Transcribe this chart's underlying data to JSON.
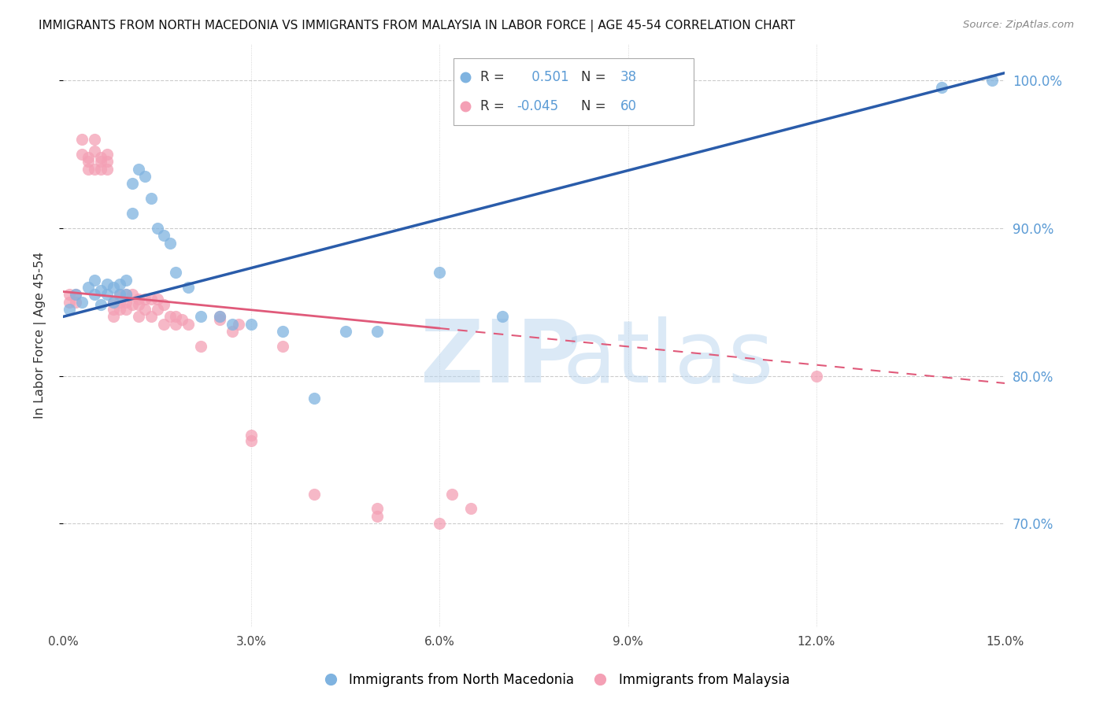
{
  "title": "IMMIGRANTS FROM NORTH MACEDONIA VS IMMIGRANTS FROM MALAYSIA IN LABOR FORCE | AGE 45-54 CORRELATION CHART",
  "source": "Source: ZipAtlas.com",
  "ylabel": "In Labor Force | Age 45-54",
  "legend_label_blue": "Immigrants from North Macedonia",
  "legend_label_pink": "Immigrants from Malaysia",
  "R_blue": 0.501,
  "N_blue": 38,
  "R_pink": -0.045,
  "N_pink": 60,
  "xlim": [
    0.0,
    0.15
  ],
  "ylim": [
    0.63,
    1.025
  ],
  "yticks": [
    0.7,
    0.8,
    0.9,
    1.0
  ],
  "ytick_labels": [
    "70.0%",
    "80.0%",
    "90.0%",
    "100.0%"
  ],
  "xticks": [
    0.0,
    0.03,
    0.06,
    0.09,
    0.12,
    0.15
  ],
  "xtick_labels": [
    "0.0%",
    "3.0%",
    "6.0%",
    "9.0%",
    "12.0%",
    "15.0%"
  ],
  "blue_color": "#7fb3e0",
  "pink_color": "#f4a0b5",
  "blue_line_color": "#2a5caa",
  "pink_line_color": "#e05a7a",
  "grid_color": "#cccccc",
  "right_axis_color": "#5b9bd5",
  "watermark_zip": "ZIP",
  "watermark_atlas": "atlas",
  "blue_scatter_x": [
    0.001,
    0.002,
    0.003,
    0.004,
    0.005,
    0.005,
    0.006,
    0.006,
    0.007,
    0.007,
    0.008,
    0.008,
    0.009,
    0.009,
    0.01,
    0.01,
    0.011,
    0.011,
    0.012,
    0.013,
    0.014,
    0.015,
    0.016,
    0.017,
    0.018,
    0.02,
    0.022,
    0.025,
    0.027,
    0.03,
    0.035,
    0.04,
    0.045,
    0.05,
    0.06,
    0.07,
    0.14,
    0.148
  ],
  "blue_scatter_y": [
    0.845,
    0.855,
    0.85,
    0.86,
    0.855,
    0.865,
    0.858,
    0.848,
    0.862,
    0.855,
    0.86,
    0.85,
    0.862,
    0.855,
    0.865,
    0.855,
    0.93,
    0.91,
    0.94,
    0.935,
    0.92,
    0.9,
    0.895,
    0.89,
    0.87,
    0.86,
    0.84,
    0.84,
    0.835,
    0.835,
    0.83,
    0.785,
    0.83,
    0.83,
    0.87,
    0.84,
    0.995,
    1.0
  ],
  "pink_scatter_x": [
    0.001,
    0.001,
    0.002,
    0.002,
    0.003,
    0.003,
    0.004,
    0.004,
    0.004,
    0.005,
    0.005,
    0.005,
    0.006,
    0.006,
    0.006,
    0.007,
    0.007,
    0.007,
    0.008,
    0.008,
    0.008,
    0.009,
    0.009,
    0.009,
    0.01,
    0.01,
    0.01,
    0.011,
    0.011,
    0.012,
    0.012,
    0.012,
    0.013,
    0.013,
    0.014,
    0.014,
    0.015,
    0.015,
    0.016,
    0.016,
    0.017,
    0.018,
    0.018,
    0.019,
    0.02,
    0.022,
    0.025,
    0.025,
    0.027,
    0.028,
    0.03,
    0.03,
    0.035,
    0.04,
    0.05,
    0.05,
    0.06,
    0.062,
    0.065,
    0.12
  ],
  "pink_scatter_y": [
    0.85,
    0.855,
    0.855,
    0.85,
    0.96,
    0.95,
    0.948,
    0.945,
    0.94,
    0.96,
    0.952,
    0.94,
    0.948,
    0.945,
    0.94,
    0.95,
    0.945,
    0.94,
    0.85,
    0.845,
    0.84,
    0.855,
    0.85,
    0.845,
    0.855,
    0.85,
    0.845,
    0.855,
    0.848,
    0.852,
    0.848,
    0.84,
    0.852,
    0.845,
    0.852,
    0.84,
    0.852,
    0.845,
    0.848,
    0.835,
    0.84,
    0.84,
    0.835,
    0.838,
    0.835,
    0.82,
    0.84,
    0.838,
    0.83,
    0.835,
    0.756,
    0.76,
    0.82,
    0.72,
    0.71,
    0.705,
    0.7,
    0.72,
    0.71,
    0.8
  ]
}
